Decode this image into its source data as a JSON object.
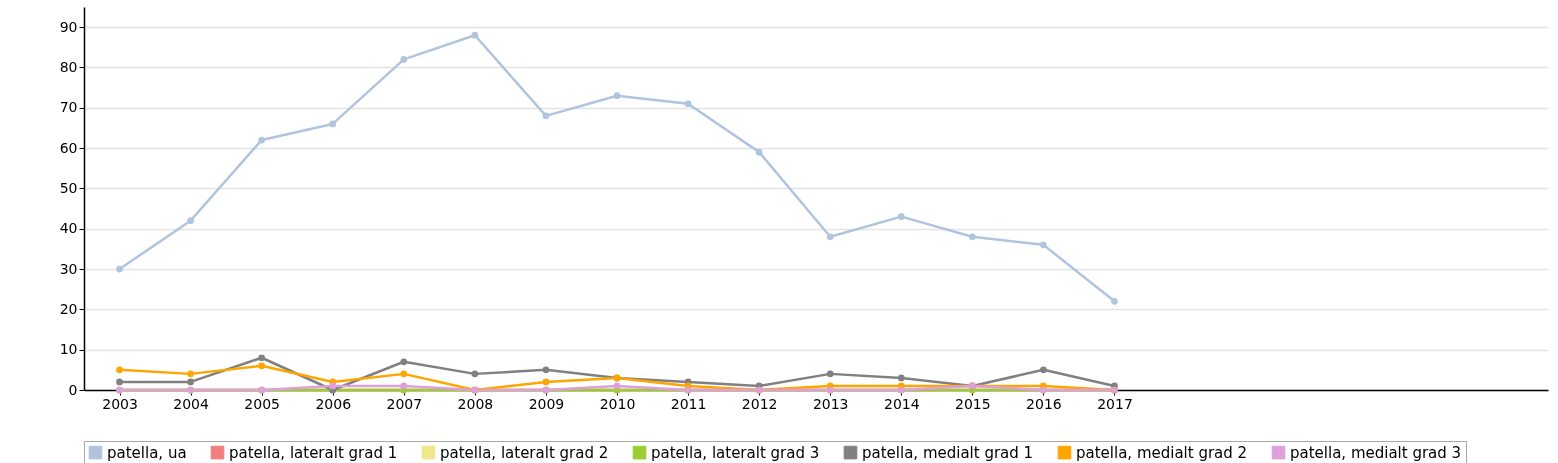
{
  "chart_data": {
    "type": "line",
    "x": [
      2003,
      2004,
      2005,
      2006,
      2007,
      2008,
      2009,
      2010,
      2011,
      2012,
      2013,
      2014,
      2015,
      2016,
      2017
    ],
    "xlim": [
      2002.5,
      2023.1
    ],
    "xticks": [
      2003,
      2004,
      2005,
      2006,
      2007,
      2008,
      2009,
      2010,
      2011,
      2012,
      2013,
      2014,
      2015,
      2016,
      2017
    ],
    "ylim": [
      0,
      95
    ],
    "yticks": [
      0,
      10,
      20,
      30,
      40,
      50,
      60,
      70,
      80,
      90
    ],
    "grid": "y",
    "legend": "bottom",
    "marker": "circle",
    "line_style": "solid",
    "series": [
      {
        "name": "patella, ua",
        "color": "#b0c4de",
        "values": [
          30,
          42,
          62,
          66,
          82,
          88,
          68,
          73,
          71,
          59,
          38,
          43,
          38,
          36,
          22
        ]
      },
      {
        "name": "patella, lateralt grad 1",
        "color": "#f08080",
        "values": [
          0,
          0,
          0,
          0,
          0,
          0,
          0,
          0,
          0,
          0,
          0,
          0,
          0,
          0,
          0
        ]
      },
      {
        "name": "patella, lateralt grad 2",
        "color": "#f0e68c",
        "values": [
          0,
          0,
          0,
          0,
          0,
          0,
          0,
          0,
          0,
          0,
          0,
          0,
          0,
          0,
          0
        ]
      },
      {
        "name": "patella, lateralt grad 3",
        "color": "#9acd32",
        "values": [
          0,
          0,
          0,
          0,
          0,
          0,
          0,
          0,
          0,
          0,
          0,
          0,
          0,
          0,
          0
        ]
      },
      {
        "name": "patella, medialt grad 1",
        "color": "#808080",
        "values": [
          2,
          2,
          8,
          0,
          7,
          4,
          5,
          3,
          2,
          1,
          4,
          3,
          1,
          5,
          1
        ]
      },
      {
        "name": "patella, medialt grad 2",
        "color": "#ffa500",
        "values": [
          5,
          4,
          6,
          2,
          4,
          0,
          2,
          3,
          1,
          0,
          1,
          1,
          1,
          1,
          0
        ]
      },
      {
        "name": "patella, medialt grad 3",
        "color": "#dda0dd",
        "values": [
          0,
          0,
          0,
          1,
          1,
          0,
          0,
          1,
          0,
          0,
          0,
          0,
          1,
          0,
          0
        ]
      }
    ]
  }
}
